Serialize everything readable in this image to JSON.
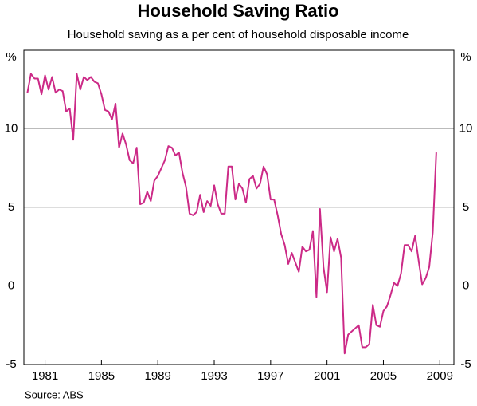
{
  "chart_data": {
    "type": "line",
    "title": "Household Saving Ratio",
    "subtitle": "Household saving as a per cent of household disposable income",
    "y_unit": "%",
    "source": "Source: ABS",
    "x": [
      1979.75,
      1980,
      1980.25,
      1980.5,
      1980.75,
      1981,
      1981.25,
      1981.5,
      1981.75,
      1982,
      1982.25,
      1982.5,
      1982.75,
      1983,
      1983.25,
      1983.5,
      1983.75,
      1984,
      1984.25,
      1984.5,
      1984.75,
      1985,
      1985.25,
      1985.5,
      1985.75,
      1986,
      1986.25,
      1986.5,
      1986.75,
      1987,
      1987.25,
      1987.5,
      1987.75,
      1988,
      1988.25,
      1988.5,
      1988.75,
      1989,
      1989.25,
      1989.5,
      1989.75,
      1990,
      1990.25,
      1990.5,
      1990.75,
      1991,
      1991.25,
      1991.5,
      1991.75,
      1992,
      1992.25,
      1992.5,
      1992.75,
      1993,
      1993.25,
      1993.5,
      1993.75,
      1994,
      1994.25,
      1994.5,
      1994.75,
      1995,
      1995.25,
      1995.5,
      1995.75,
      1996,
      1996.25,
      1996.5,
      1996.75,
      1997,
      1997.25,
      1997.5,
      1997.75,
      1998,
      1998.25,
      1998.5,
      1998.75,
      1999,
      1999.25,
      1999.5,
      1999.75,
      2000,
      2000.25,
      2000.5,
      2000.75,
      2001,
      2001.25,
      2001.5,
      2001.75,
      2002,
      2002.25,
      2002.5,
      2002.75,
      2003,
      2003.25,
      2003.5,
      2003.75,
      2004,
      2004.25,
      2004.5,
      2004.75,
      2005,
      2005.25,
      2005.5,
      2005.75,
      2006,
      2006.25,
      2006.5,
      2006.75,
      2007,
      2007.25,
      2007.5,
      2007.75,
      2008,
      2008.25,
      2008.5,
      2008.75
    ],
    "series": [
      {
        "name": "Household saving ratio",
        "color": "#cc2a87",
        "values": [
          12.3,
          13.5,
          13.2,
          13.2,
          12.2,
          13.4,
          12.5,
          13.3,
          12.3,
          12.5,
          12.4,
          11.1,
          11.3,
          9.3,
          13.5,
          12.5,
          13.3,
          13.1,
          13.3,
          13.0,
          12.9,
          12.2,
          11.2,
          11.1,
          10.6,
          11.6,
          8.8,
          9.7,
          9.0,
          8.0,
          7.8,
          8.8,
          5.2,
          5.3,
          6.0,
          5.4,
          6.7,
          7.0,
          7.5,
          8.0,
          8.9,
          8.8,
          8.3,
          8.5,
          7.2,
          6.3,
          4.6,
          4.5,
          4.7,
          5.8,
          4.7,
          5.4,
          5.1,
          6.4,
          5.2,
          4.6,
          4.6,
          7.6,
          7.6,
          5.5,
          6.5,
          6.2,
          5.3,
          6.8,
          7.0,
          6.2,
          6.5,
          7.6,
          7.1,
          5.5,
          5.5,
          4.5,
          3.3,
          2.6,
          1.4,
          2.1,
          1.5,
          0.9,
          2.5,
          2.2,
          2.3,
          3.5,
          -0.7,
          4.9,
          1.2,
          -0.4,
          3.1,
          2.2,
          3.0,
          1.8,
          -4.3,
          -3.1,
          -2.9,
          -2.7,
          -2.5,
          -3.9,
          -3.9,
          -3.7,
          -1.2,
          -2.5,
          -2.6,
          -1.6,
          -1.3,
          -0.6,
          0.2,
          0.0,
          0.8,
          2.6,
          2.6,
          2.2,
          3.2,
          1.6,
          0.1,
          0.5,
          1.2,
          3.4,
          8.5
        ]
      }
    ],
    "xlim": [
      1979.5,
      2010
    ],
    "xticks": [
      1981,
      1985,
      1989,
      1993,
      1997,
      2001,
      2005,
      2009
    ],
    "ylim": [
      -5,
      15
    ],
    "yticks": [
      -5,
      0,
      5,
      10
    ],
    "grid": true
  }
}
